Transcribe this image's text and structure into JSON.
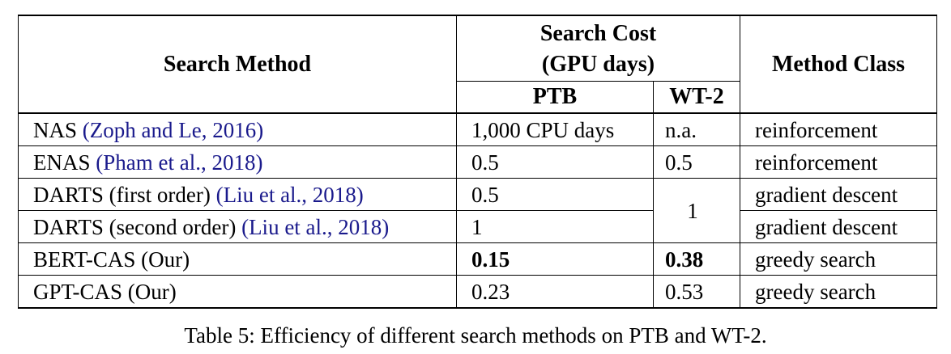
{
  "table": {
    "headers": {
      "method": "Search Method",
      "cost_line1": "Search Cost",
      "cost_line2": "(GPU days)",
      "ptb": "PTB",
      "wt2": "WT-2",
      "class": "Method Class"
    },
    "rows": [
      {
        "method": "NAS ",
        "cite": "(Zoph and Le, 2016)",
        "ptb": "1,000 CPU days",
        "wt2": "n.a.",
        "class": "reinforcement"
      },
      {
        "method": "ENAS ",
        "cite": "(Pham et al., 2018)",
        "ptb": "0.5",
        "wt2": "0.5",
        "class": "reinforcement"
      },
      {
        "method": "DARTS (first order) ",
        "cite": "(Liu et al., 2018)",
        "ptb": "0.5",
        "wt2": "1",
        "class": "gradient descent"
      },
      {
        "method": "DARTS (second order) ",
        "cite": "(Liu et al., 2018)",
        "ptb": "1",
        "wt2": "",
        "class": "gradient descent"
      },
      {
        "method": "BERT-CAS (Our)",
        "cite": "",
        "ptb": "0.15",
        "wt2": "0.38",
        "class": "greedy search"
      },
      {
        "method": "GPT-CAS (Our)",
        "cite": "",
        "ptb": "0.23",
        "wt2": "0.53",
        "class": "greedy search"
      }
    ]
  },
  "caption": "Table 5: Efficiency of different search methods on PTB and WT-2."
}
